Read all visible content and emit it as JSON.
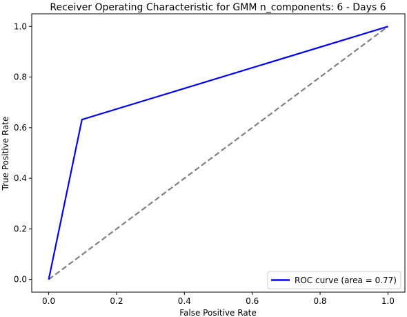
{
  "chart_data": {
    "type": "line",
    "title": "Receiver Operating Characteristic for GMM n_components: 6 - Days 6",
    "xlabel": "False Positive Rate",
    "ylabel": "True Positive Rate",
    "xlim": [
      -0.05,
      1.05
    ],
    "ylim": [
      -0.05,
      1.05
    ],
    "xticks": [
      0.0,
      0.2,
      0.4,
      0.6,
      0.8,
      1.0
    ],
    "yticks": [
      0.0,
      0.2,
      0.4,
      0.6,
      0.8,
      1.0
    ],
    "xtick_labels": [
      "0.0",
      "0.2",
      "0.4",
      "0.6",
      "0.8",
      "1.0"
    ],
    "ytick_labels": [
      "0.0",
      "0.2",
      "0.4",
      "0.6",
      "0.8",
      "1.0"
    ],
    "grid": false,
    "legend_position": "lower-right",
    "series": [
      {
        "name": "ROC curve (area = 0.77)",
        "color": "#0000ff",
        "style": "solid",
        "x": [
          0.0,
          0.098,
          1.0
        ],
        "y": [
          0.0,
          0.632,
          1.0
        ]
      },
      {
        "color": "#808080",
        "style": "dashed",
        "x": [
          0.0,
          1.0
        ],
        "y": [
          0.0,
          1.0
        ]
      }
    ]
  }
}
